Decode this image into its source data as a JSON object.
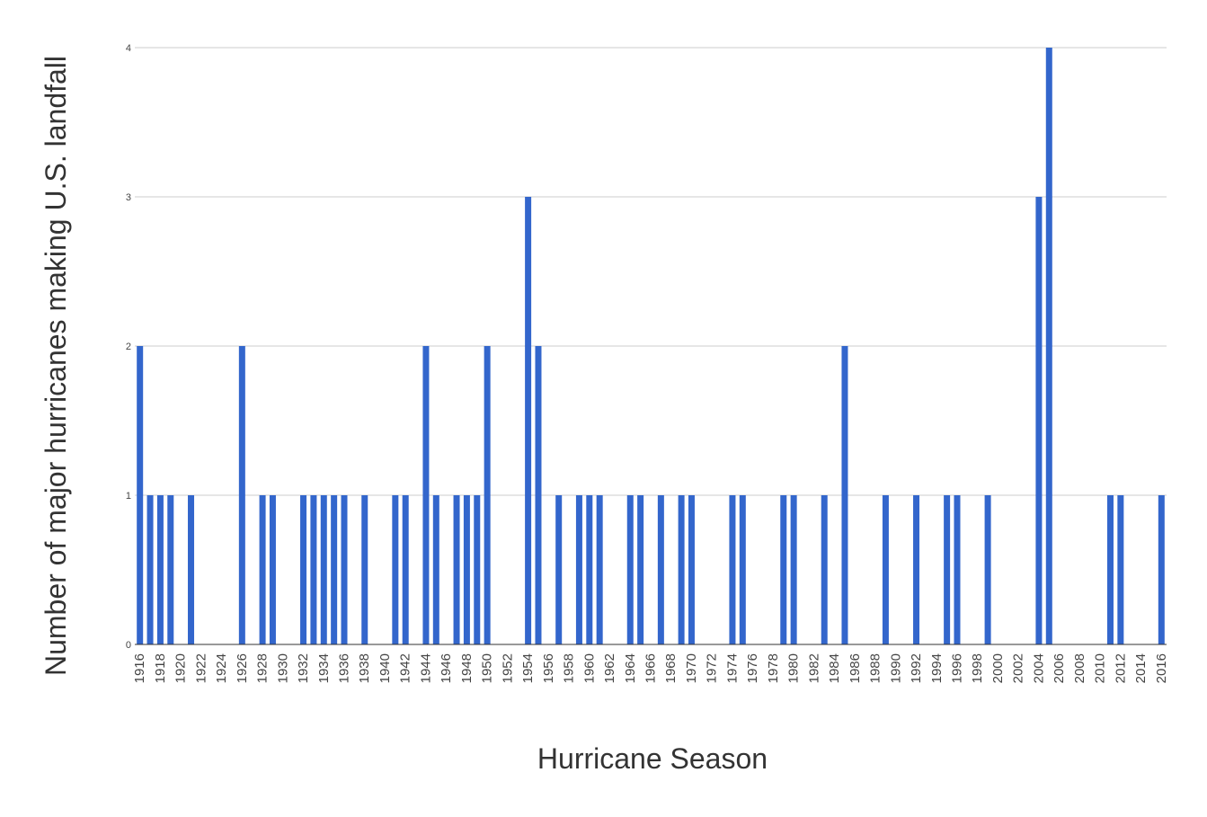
{
  "chart_data": {
    "type": "bar",
    "title": "",
    "xlabel": "Hurricane Season",
    "ylabel": "Number of major hurricanes making U.S. landfall",
    "ylim": [
      0,
      4
    ],
    "yticks": [
      0,
      1,
      2,
      3,
      4
    ],
    "grid": true,
    "bar_color": "#3366cc",
    "grid_color": "#cccccc",
    "x_start": 1916,
    "x_end": 2016,
    "xtick_labels": [
      "1916",
      "1918",
      "1920",
      "1922",
      "1924",
      "1926",
      "1928",
      "1930",
      "1932",
      "1934",
      "1936",
      "1938",
      "1940",
      "1942",
      "1944",
      "1946",
      "1948",
      "1950",
      "1952",
      "1954",
      "1956",
      "1958",
      "1960",
      "1962",
      "1964",
      "1966",
      "1968",
      "1970",
      "1972",
      "1974",
      "1976",
      "1978",
      "1980",
      "1982",
      "1984",
      "1986",
      "1988",
      "1990",
      "1992",
      "1994",
      "1996",
      "1998",
      "2000",
      "2002",
      "2004",
      "2006",
      "2008",
      "2010",
      "2012",
      "2014",
      "2016"
    ],
    "points": [
      {
        "x": 1916,
        "y": 2
      },
      {
        "x": 1917,
        "y": 1
      },
      {
        "x": 1918,
        "y": 1
      },
      {
        "x": 1919,
        "y": 1
      },
      {
        "x": 1921,
        "y": 1
      },
      {
        "x": 1926,
        "y": 2
      },
      {
        "x": 1928,
        "y": 1
      },
      {
        "x": 1929,
        "y": 1
      },
      {
        "x": 1932,
        "y": 1
      },
      {
        "x": 1933,
        "y": 1
      },
      {
        "x": 1934,
        "y": 1
      },
      {
        "x": 1935,
        "y": 1
      },
      {
        "x": 1936,
        "y": 1
      },
      {
        "x": 1938,
        "y": 1
      },
      {
        "x": 1941,
        "y": 1
      },
      {
        "x": 1942,
        "y": 1
      },
      {
        "x": 1944,
        "y": 2
      },
      {
        "x": 1945,
        "y": 1
      },
      {
        "x": 1947,
        "y": 1
      },
      {
        "x": 1948,
        "y": 1
      },
      {
        "x": 1949,
        "y": 1
      },
      {
        "x": 1950,
        "y": 2
      },
      {
        "x": 1954,
        "y": 3
      },
      {
        "x": 1955,
        "y": 2
      },
      {
        "x": 1957,
        "y": 1
      },
      {
        "x": 1959,
        "y": 1
      },
      {
        "x": 1960,
        "y": 1
      },
      {
        "x": 1961,
        "y": 1
      },
      {
        "x": 1964,
        "y": 1
      },
      {
        "x": 1965,
        "y": 1
      },
      {
        "x": 1967,
        "y": 1
      },
      {
        "x": 1969,
        "y": 1
      },
      {
        "x": 1970,
        "y": 1
      },
      {
        "x": 1974,
        "y": 1
      },
      {
        "x": 1975,
        "y": 1
      },
      {
        "x": 1979,
        "y": 1
      },
      {
        "x": 1980,
        "y": 1
      },
      {
        "x": 1983,
        "y": 1
      },
      {
        "x": 1985,
        "y": 2
      },
      {
        "x": 1989,
        "y": 1
      },
      {
        "x": 1992,
        "y": 1
      },
      {
        "x": 1995,
        "y": 1
      },
      {
        "x": 1996,
        "y": 1
      },
      {
        "x": 1999,
        "y": 1
      },
      {
        "x": 2004,
        "y": 3
      },
      {
        "x": 2005,
        "y": 4
      },
      {
        "x": 2011,
        "y": 1
      },
      {
        "x": 2012,
        "y": 1
      },
      {
        "x": 2016,
        "y": 1
      }
    ]
  }
}
